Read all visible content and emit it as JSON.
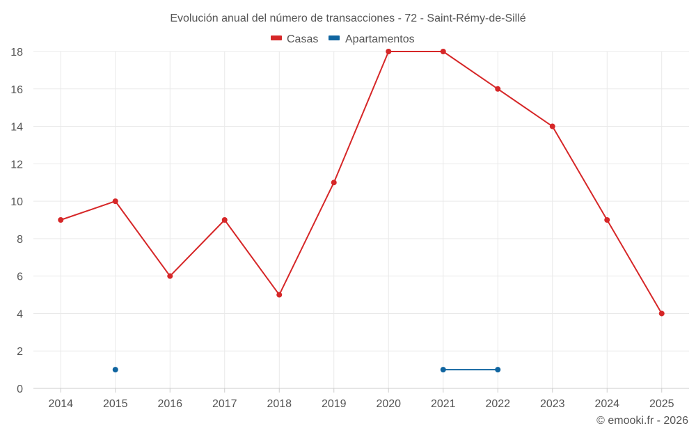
{
  "chart_data": {
    "type": "line",
    "title": "Evolución anual del número de transacciones - 72 - Saint-Rémy-de-Sillé",
    "categories": [
      "2014",
      "2015",
      "2016",
      "2017",
      "2018",
      "2019",
      "2020",
      "2021",
      "2022",
      "2023",
      "2024",
      "2025"
    ],
    "series": [
      {
        "name": "Casas",
        "color": "#d62728",
        "values": [
          9,
          10,
          6,
          9,
          5,
          11,
          18,
          18,
          16,
          14,
          9,
          4
        ]
      },
      {
        "name": "Apartamentos",
        "color": "#1065a0",
        "values": [
          null,
          1,
          null,
          null,
          null,
          null,
          null,
          1,
          1,
          null,
          null,
          null
        ]
      }
    ],
    "xlabel": "",
    "ylabel": "",
    "ylim": [
      0,
      18
    ],
    "yticks": [
      0,
      2,
      4,
      6,
      8,
      10,
      12,
      14,
      16,
      18
    ],
    "grid": true,
    "legend_position": "top-center"
  },
  "credit": "© emooki.fr - 2026"
}
